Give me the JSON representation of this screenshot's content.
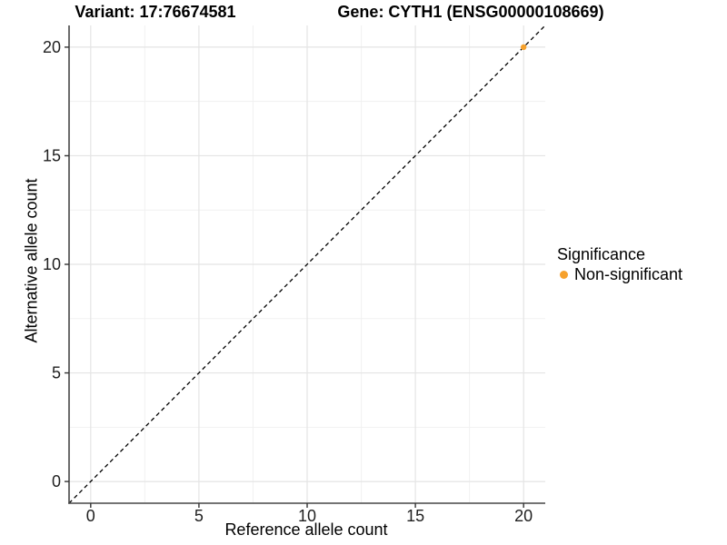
{
  "header": {
    "variant_title": "Variant: 17:76674581",
    "gene_title": "Gene: CYTH1 (ENSG00000108669)"
  },
  "colors": {
    "background": "#FFFFFF",
    "grid_major": "#E4E4E4",
    "grid_minor": "#F1F1F1",
    "axis_line": "#474747",
    "tick_mark": "#333333",
    "tick_label": "#1F1F1F",
    "identity_line": "#000000",
    "point": "#F6A12C"
  },
  "chart_data": {
    "type": "scatter",
    "title": "Variant: 17:76674581   Gene: CYTH1 (ENSG00000108669)",
    "xlabel": "Reference allele count",
    "ylabel": "Alternative allele count",
    "xlim": [
      -1,
      21
    ],
    "ylim": [
      -1,
      21
    ],
    "x_ticks": [
      0,
      5,
      10,
      15,
      20
    ],
    "y_ticks": [
      0,
      5,
      10,
      15,
      20
    ],
    "x_minor_ticks": [
      2.5,
      7.5,
      12.5,
      17.5
    ],
    "y_minor_ticks": [
      2.5,
      7.5,
      12.5,
      17.5
    ],
    "grid": true,
    "identity_line": {
      "style": "dashed",
      "from": -1,
      "to": 21
    },
    "points": [
      {
        "x": 20,
        "y": 20,
        "series": "Non-significant"
      }
    ],
    "legend": {
      "title": "Significance",
      "position": "right",
      "items": [
        {
          "label": "Non-significant",
          "color": "#F6A12C"
        }
      ]
    }
  }
}
